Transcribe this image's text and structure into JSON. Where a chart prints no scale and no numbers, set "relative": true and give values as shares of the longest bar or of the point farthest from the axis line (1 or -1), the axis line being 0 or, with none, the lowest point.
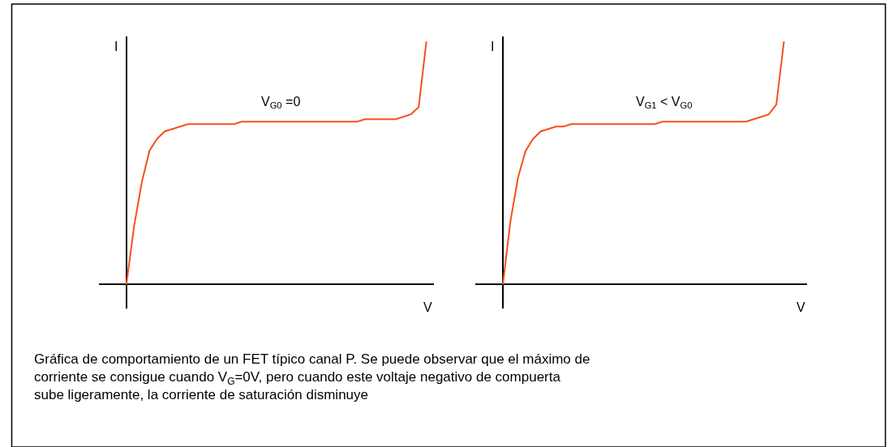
{
  "chart_data": [
    {
      "type": "line",
      "relative": true,
      "xlabel": "V",
      "ylabel": "I",
      "line_style": "solid",
      "categories": [
        null,
        null,
        null,
        null,
        null,
        null,
        null,
        null,
        null,
        null,
        null,
        null,
        null,
        null,
        null,
        null,
        null,
        null,
        null,
        null,
        null,
        null,
        null,
        null,
        null,
        null,
        null,
        null,
        null,
        null,
        null,
        null,
        null,
        null,
        null,
        null,
        null,
        null,
        null,
        null
      ],
      "series": [
        {
          "color": "#f4511e",
          "values": [
            0,
            0.24,
            0.42,
            0.55,
            0.6,
            0.63,
            0.64,
            0.65,
            0.66,
            0.66,
            0.66,
            0.66,
            0.66,
            0.66,
            0.66,
            0.67,
            0.67,
            0.67,
            0.67,
            0.67,
            0.67,
            0.67,
            0.67,
            0.67,
            0.67,
            0.67,
            0.67,
            0.67,
            0.67,
            0.67,
            0.67,
            0.68,
            0.68,
            0.68,
            0.68,
            0.68,
            0.69,
            0.7,
            0.73,
            1
          ]
        }
      ],
      "annotations": [
        "V$_{G0}$ =0",
        "Gráfica de comportamiento de un FET típico canal P. Se puede observar que el máximo de corriente se consigue cuando V$_{G}$=0V, pero cuando este voltaje negativo de compuerta sube ligeramente, la corriente de saturación disminuye"
      ]
    },
    {
      "type": "line",
      "relative": true,
      "xlabel": "V",
      "ylabel": "I",
      "line_style": "solid",
      "categories": [
        null,
        null,
        null,
        null,
        null,
        null,
        null,
        null,
        null,
        null,
        null,
        null,
        null,
        null,
        null,
        null,
        null,
        null,
        null,
        null,
        null,
        null,
        null,
        null,
        null,
        null,
        null,
        null,
        null,
        null,
        null,
        null,
        null,
        null,
        null,
        null,
        null,
        null
      ],
      "series": [
        {
          "color": "#f4511e",
          "values": [
            0,
            0.26,
            0.44,
            0.55,
            0.6,
            0.63,
            0.64,
            0.65,
            0.65,
            0.66,
            0.66,
            0.66,
            0.66,
            0.66,
            0.66,
            0.66,
            0.66,
            0.66,
            0.66,
            0.66,
            0.66,
            0.67,
            0.67,
            0.67,
            0.67,
            0.67,
            0.67,
            0.67,
            0.67,
            0.67,
            0.67,
            0.67,
            0.67,
            0.68,
            0.69,
            0.7,
            0.74,
            1
          ]
        }
      ],
      "annotations": [
        "V$_{G1}$ < V$_{G0}$"
      ]
    }
  ]
}
